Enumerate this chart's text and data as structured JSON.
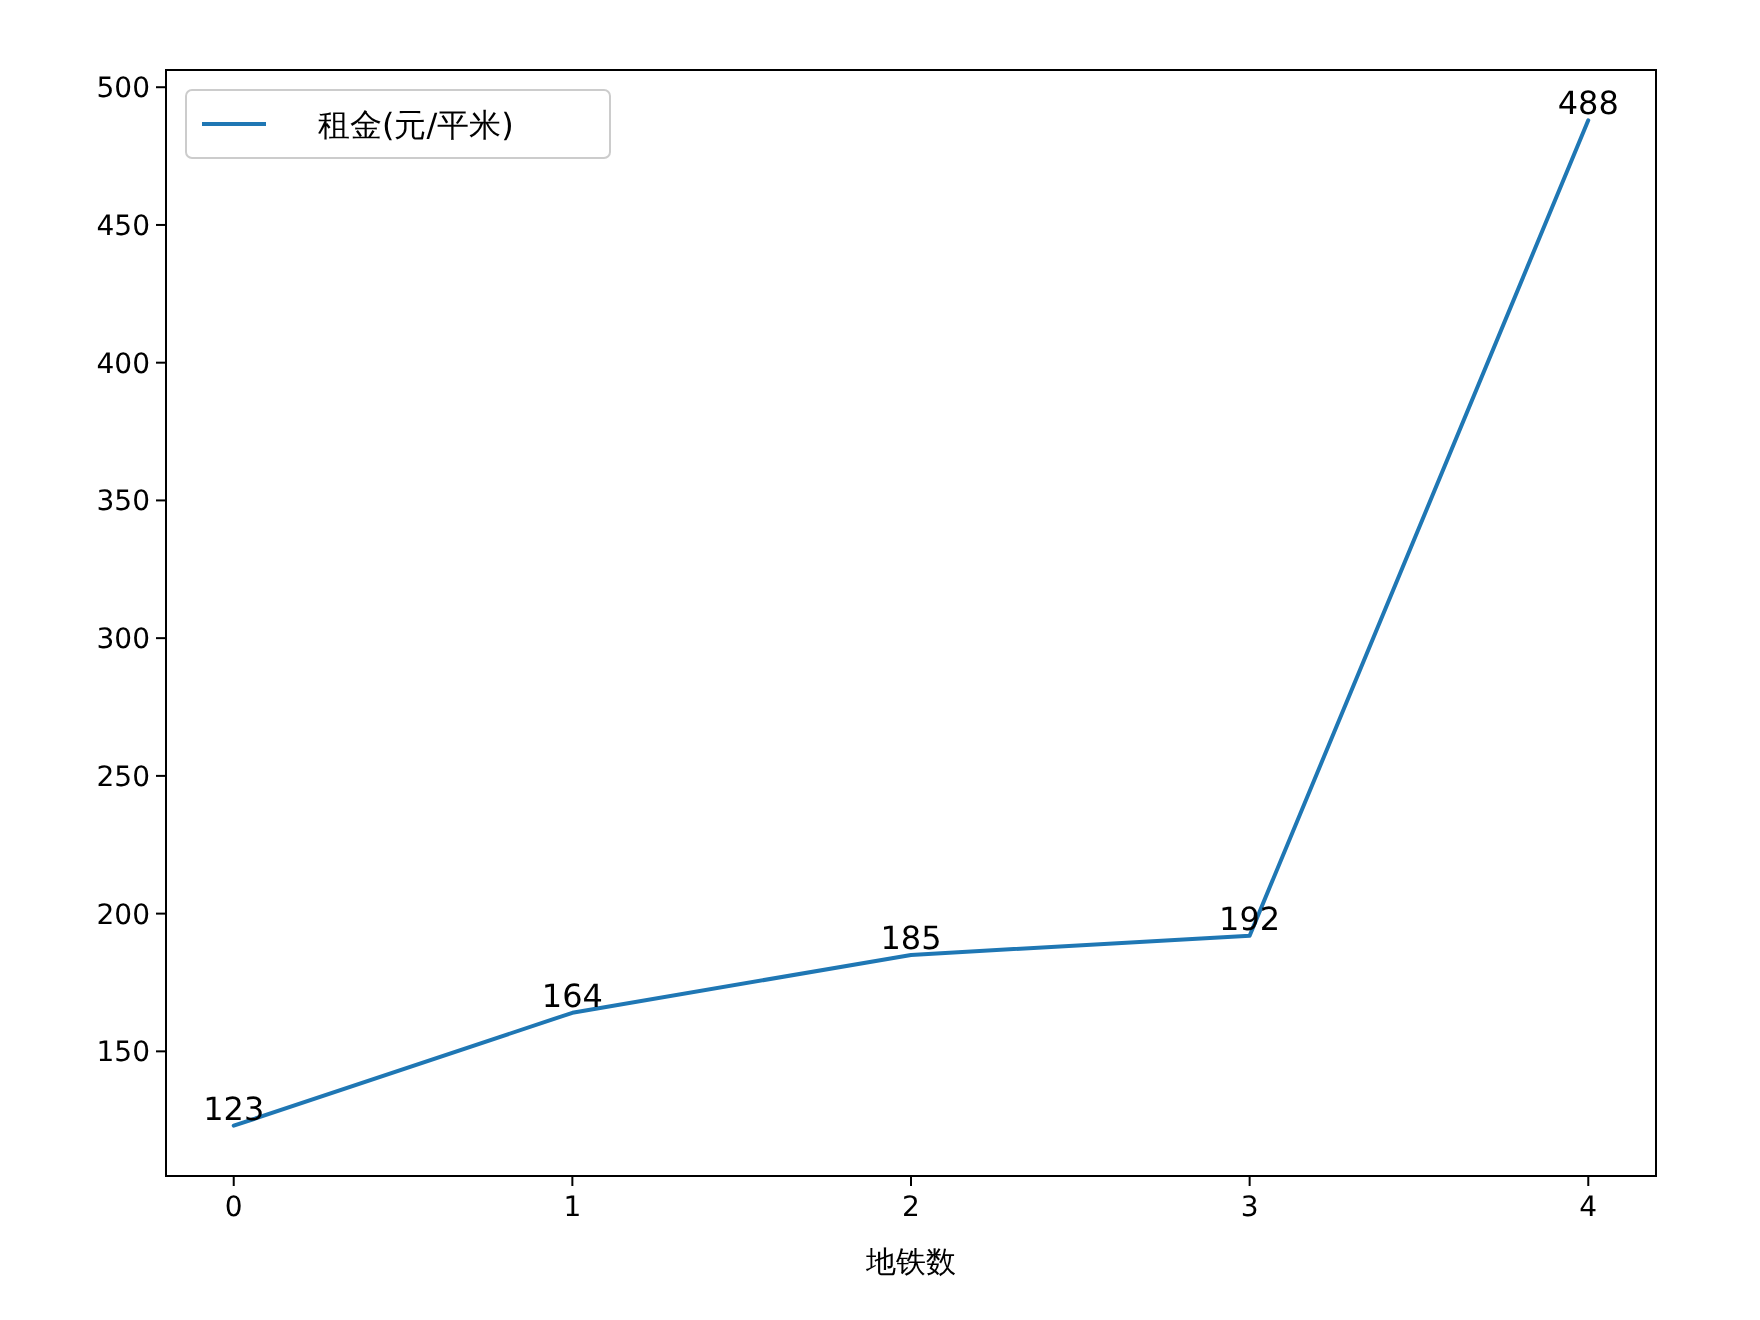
{
  "chart_data": {
    "type": "line",
    "xlabel": "地铁数",
    "x": [
      0,
      1,
      2,
      3,
      4
    ],
    "xlim": [
      -0.2,
      4.2
    ],
    "xticks": [
      0,
      1,
      2,
      3,
      4
    ],
    "ylim": [
      104.75,
      506.25
    ],
    "yticks": [
      150,
      200,
      250,
      300,
      350,
      400,
      450,
      500
    ],
    "series": [
      {
        "name": "租金(元/平米)",
        "color": "#1f77b4",
        "values": [
          123,
          164,
          185,
          192,
          488
        ]
      }
    ],
    "legend": "top left",
    "data_labels": true,
    "grid": false
  }
}
